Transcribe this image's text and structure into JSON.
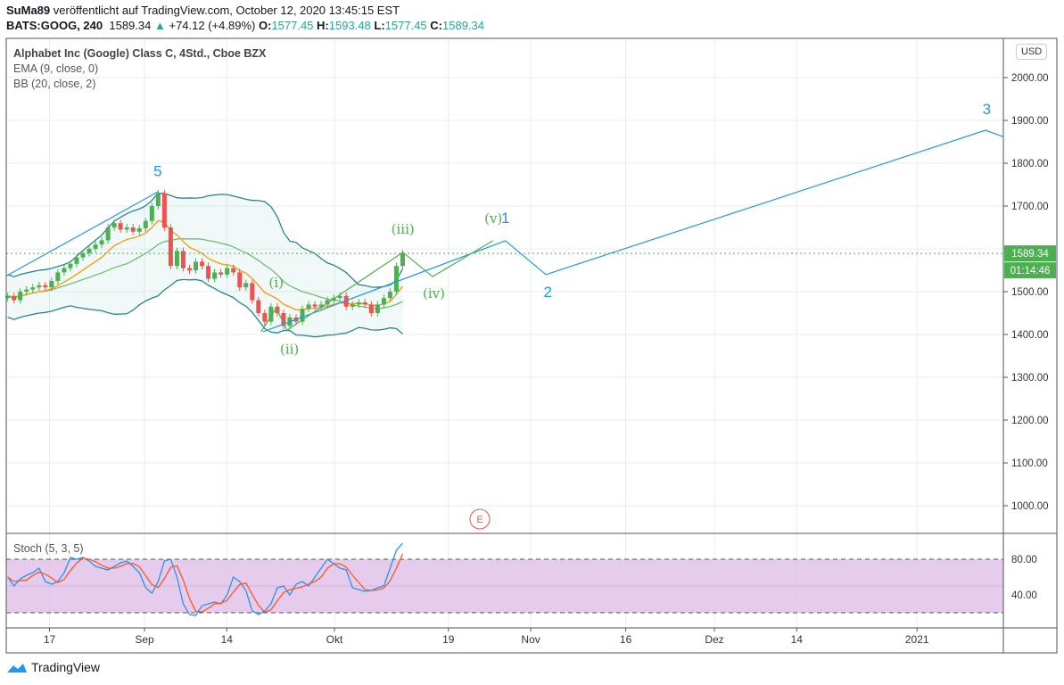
{
  "header": {
    "author": "SuMa89",
    "published": "veröffentlicht auf TradingView.com, October 12, 2020 13:45:15 EST",
    "symbol": "BATS:GOOG, 240",
    "last": "1589.34",
    "change": "+74.12 (+4.89%)",
    "o_label": "O:",
    "o": "1577.45",
    "h_label": "H:",
    "h": "1593.48",
    "l_label": "L:",
    "l": "1577.45",
    "c_label": "C:",
    "c": "1589.34"
  },
  "legend": {
    "title": "Alphabet Inc (Google) Class C, 4Std., Cboe BZX",
    "ema": "EMA (9, close, 0)",
    "bb": "BB (20, close, 2)",
    "stoch": "Stoch (5, 3, 5)"
  },
  "currency": "USD",
  "price_label": "1589.34",
  "countdown": "01:14:46",
  "brand": "TradingView",
  "event_marker": "E",
  "colors": {
    "up": "#4caf50",
    "down": "#ef5350",
    "ema": "#ff9800",
    "bb": "#26868a",
    "bbmid": "#66bb6a",
    "wave": "#2196f3",
    "subwave": "#4caf50",
    "stochK": "#2196f3",
    "stochD": "#ff5722",
    "stochBg": "#e1bee7"
  },
  "chart_data": {
    "type": "candlestick",
    "ylim": [
      950,
      2100
    ],
    "price_ticks": [
      "2000.00",
      "1900.00",
      "1800.00",
      "1700.00",
      "1500.00",
      "1400.00",
      "1300.00",
      "1200.00",
      "1100.00",
      "1000.00"
    ],
    "price_tick_values": [
      2000,
      1900,
      1800,
      1700,
      1500,
      1400,
      1300,
      1200,
      1100,
      1000
    ],
    "time_ticks": [
      {
        "label": "17",
        "day": 5
      },
      {
        "label": "Sep",
        "day": 20
      },
      {
        "label": "14",
        "day": 33
      },
      {
        "label": "Okt",
        "day": 50
      },
      {
        "label": "19",
        "day": 68
      },
      {
        "label": "Nov",
        "day": 81
      },
      {
        "label": "16",
        "day": 96
      },
      {
        "label": "Dez",
        "day": 110
      },
      {
        "label": "14",
        "day": 123
      },
      {
        "label": "2021",
        "day": 142
      }
    ],
    "time_unit": "days since Aug 12 2020",
    "closes": [
      1490,
      1480,
      1500,
      1505,
      1510,
      1515,
      1510,
      1525,
      1545,
      1555,
      1565,
      1580,
      1590,
      1600,
      1610,
      1620,
      1650,
      1660,
      1645,
      1650,
      1640,
      1648,
      1665,
      1700,
      1730,
      1650,
      1560,
      1595,
      1555,
      1550,
      1570,
      1560,
      1530,
      1545,
      1540,
      1555,
      1545,
      1510,
      1520,
      1480,
      1450,
      1430,
      1465,
      1450,
      1420,
      1440,
      1430,
      1460,
      1470,
      1465,
      1470,
      1480,
      1485,
      1490,
      1465,
      1470,
      1475,
      1470,
      1450,
      1470,
      1485,
      1500,
      1560,
      1590
    ],
    "first_bar_day": -1.6,
    "bar_step_days": 0.99,
    "current_price": 1589.34,
    "stoch": {
      "k": [
        60,
        50,
        58,
        62,
        65,
        70,
        55,
        52,
        55,
        65,
        82,
        80,
        82,
        78,
        72,
        70,
        68,
        72,
        76,
        78,
        72,
        65,
        48,
        42,
        55,
        78,
        80,
        60,
        30,
        18,
        17,
        28,
        30,
        32,
        30,
        40,
        60,
        55,
        45,
        22,
        18,
        22,
        30,
        48,
        50,
        40,
        52,
        55,
        50,
        60,
        70,
        80,
        75,
        70,
        68,
        48,
        46,
        44,
        45,
        48,
        50,
        70,
        90,
        98
      ],
      "upper": 80,
      "lower": 20,
      "ticks": [
        "80.00",
        "40.00"
      ],
      "tick_values": [
        80,
        40
      ]
    },
    "waves": [
      {
        "name": "channel",
        "color": "wave",
        "points": [
          [
            -1.8,
            1537
          ],
          [
            22.1,
            1733
          ]
        ]
      },
      {
        "name": "primary",
        "color": "wave",
        "points": [
          [
            38.7,
            1406
          ],
          [
            77,
            1619
          ],
          [
            83.4,
            1540
          ],
          [
            152.8,
            1877
          ],
          [
            155.6,
            1862
          ]
        ]
      },
      {
        "name": "minor",
        "color": "subwave",
        "points": [
          [
            38.4,
            1406
          ],
          [
            40.8,
            1462
          ],
          [
            42.5,
            1410
          ],
          [
            60.8,
            1592
          ],
          [
            65.5,
            1535
          ],
          [
            75,
            1619
          ]
        ]
      }
    ],
    "wave_labels": [
      {
        "text": "5",
        "day": 22.1,
        "price": 1770,
        "color": "wave"
      },
      {
        "text": "(i)",
        "day": 40.8,
        "price": 1510,
        "color": "subwave"
      },
      {
        "text": "(ii)",
        "day": 42.9,
        "price": 1355,
        "color": "subwave"
      },
      {
        "text": "(iii)",
        "day": 60.8,
        "price": 1635,
        "color": "subwave"
      },
      {
        "text": "(iv)",
        "day": 65.7,
        "price": 1485,
        "color": "subwave"
      },
      {
        "text": "(v)",
        "day": 75.1,
        "price": 1660,
        "color": "subwave"
      },
      {
        "text": "1",
        "day": 77,
        "price": 1660,
        "color": "wave"
      },
      {
        "text": "2",
        "day": 83.7,
        "price": 1488,
        "color": "wave"
      },
      {
        "text": "3",
        "day": 153,
        "price": 1915,
        "color": "wave"
      }
    ]
  }
}
